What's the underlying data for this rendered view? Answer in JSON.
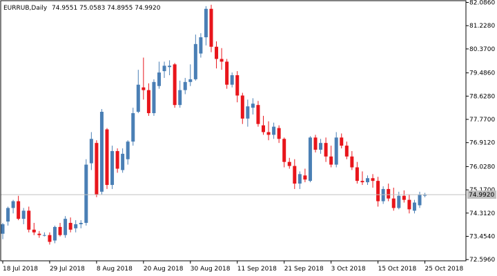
{
  "header": {
    "symbol": "EURRUB,Daily",
    "ohlc": "74.9551 75.0583 74.8955 74.9920"
  },
  "colors": {
    "background": "#ffffff",
    "frame": "#000000",
    "up": "#4a7fb5",
    "down": "#e8151b",
    "price_line": "#c0c0c0",
    "price_box": "#c0c0c0",
    "text": "#000000"
  },
  "chart_data": {
    "type": "candlestick",
    "title": "EURRUB,Daily",
    "current_price": 74.992,
    "current_price_label": "74.9920",
    "ylim": [
      72.55,
      82.15
    ],
    "y_ticks": [
      82.086,
      81.228,
      80.37,
      79.486,
      78.628,
      77.77,
      76.912,
      76.028,
      75.17,
      74.312,
      73.454,
      72.596
    ],
    "y_tick_labels": [
      "82.0860",
      "81.2280",
      "80.3700",
      "79.4860",
      "78.6280",
      "77.7700",
      "76.9120",
      "76.0280",
      "75.1700",
      "74.3120",
      "73.4540",
      "72.5960"
    ],
    "x_tick_labels": [
      {
        "index": 0,
        "label": "18 Jul 2018"
      },
      {
        "index": 9,
        "label": "29 Jul 2018"
      },
      {
        "index": 18,
        "label": "8 Aug 2018"
      },
      {
        "index": 27,
        "label": "20 Aug 2018"
      },
      {
        "index": 36,
        "label": "30 Aug 2018"
      },
      {
        "index": 45,
        "label": "11 Sep 2018"
      },
      {
        "index": 54,
        "label": "21 Sep 2018"
      },
      {
        "index": 63,
        "label": "3 Oct 2018"
      },
      {
        "index": 72,
        "label": "15 Oct 2018"
      },
      {
        "index": 81,
        "label": "25 Oct 2018"
      }
    ],
    "candles": [
      [
        73.55,
        73.95,
        73.35,
        73.9
      ],
      [
        74.0,
        74.55,
        73.85,
        74.5
      ],
      [
        74.5,
        74.8,
        74.3,
        74.75
      ],
      [
        74.75,
        74.95,
        74.05,
        74.1
      ],
      [
        74.1,
        74.5,
        73.9,
        74.4
      ],
      [
        74.4,
        74.55,
        73.6,
        73.7
      ],
      [
        73.7,
        73.95,
        73.5,
        73.6
      ],
      [
        73.55,
        73.65,
        73.4,
        73.5
      ],
      [
        73.5,
        73.6,
        73.45,
        73.5
      ],
      [
        73.5,
        73.6,
        73.15,
        73.25
      ],
      [
        73.3,
        73.85,
        73.2,
        73.8
      ],
      [
        73.8,
        73.95,
        73.45,
        73.5
      ],
      [
        73.5,
        74.2,
        73.4,
        74.1
      ],
      [
        73.95,
        74.15,
        73.6,
        73.7
      ],
      [
        73.75,
        74.05,
        73.6,
        73.9
      ],
      [
        73.9,
        74.05,
        73.75,
        73.95
      ],
      [
        73.95,
        76.3,
        73.85,
        76.1
      ],
      [
        76.15,
        77.3,
        75.9,
        77.05
      ],
      [
        76.9,
        77.0,
        74.9,
        75.0
      ],
      [
        75.1,
        78.15,
        75.0,
        78.05
      ],
      [
        77.4,
        77.45,
        75.2,
        75.35
      ],
      [
        75.35,
        76.8,
        75.2,
        76.6
      ],
      [
        76.6,
        76.7,
        75.8,
        75.95
      ],
      [
        75.9,
        76.7,
        75.8,
        76.5
      ],
      [
        76.3,
        77.0,
        76.1,
        76.95
      ],
      [
        76.95,
        78.2,
        76.8,
        78.0
      ],
      [
        78.05,
        79.6,
        78.0,
        79.05
      ],
      [
        78.95,
        80.05,
        78.5,
        78.85
      ],
      [
        78.85,
        79.1,
        77.9,
        78.0
      ],
      [
        78.0,
        79.25,
        77.9,
        79.15
      ],
      [
        79.0,
        79.9,
        78.9,
        79.5
      ],
      [
        79.55,
        79.9,
        79.3,
        79.75
      ],
      [
        79.7,
        79.95,
        79.4,
        79.75
      ],
      [
        79.8,
        79.85,
        78.2,
        78.3
      ],
      [
        78.3,
        79.2,
        78.2,
        78.85
      ],
      [
        78.85,
        79.3,
        78.7,
        79.15
      ],
      [
        79.15,
        79.8,
        79.0,
        79.25
      ],
      [
        79.25,
        80.9,
        79.2,
        80.55
      ],
      [
        80.2,
        80.95,
        80.05,
        80.8
      ],
      [
        80.8,
        81.95,
        80.5,
        81.85
      ],
      [
        81.85,
        82.0,
        80.25,
        80.45
      ],
      [
        80.45,
        80.65,
        79.65,
        80.0
      ],
      [
        80.0,
        80.4,
        79.6,
        79.9
      ],
      [
        79.9,
        80.0,
        78.9,
        79.05
      ],
      [
        79.05,
        79.5,
        78.95,
        79.4
      ],
      [
        79.4,
        79.55,
        78.4,
        78.65
      ],
      [
        78.65,
        78.75,
        77.6,
        77.8
      ],
      [
        77.8,
        78.5,
        77.5,
        78.25
      ],
      [
        78.2,
        78.55,
        77.95,
        78.35
      ],
      [
        78.3,
        78.45,
        77.5,
        77.6
      ],
      [
        77.55,
        77.9,
        77.2,
        77.3
      ],
      [
        77.3,
        77.7,
        77.0,
        77.2
      ],
      [
        77.2,
        77.65,
        77.05,
        77.5
      ],
      [
        77.45,
        77.55,
        76.9,
        77.05
      ],
      [
        77.05,
        77.1,
        76.0,
        76.2
      ],
      [
        76.2,
        76.35,
        75.95,
        76.05
      ],
      [
        76.05,
        76.3,
        75.2,
        75.4
      ],
      [
        75.4,
        75.85,
        75.2,
        75.75
      ],
      [
        75.7,
        75.95,
        75.45,
        75.55
      ],
      [
        75.5,
        77.15,
        75.45,
        77.1
      ],
      [
        77.1,
        77.2,
        76.55,
        76.65
      ],
      [
        76.65,
        77.05,
        76.5,
        76.9
      ],
      [
        76.9,
        77.1,
        76.2,
        76.4
      ],
      [
        76.4,
        76.8,
        76.0,
        76.1
      ],
      [
        76.1,
        77.3,
        76.0,
        77.1
      ],
      [
        77.1,
        77.25,
        76.7,
        76.8
      ],
      [
        76.8,
        76.95,
        76.3,
        76.4
      ],
      [
        76.4,
        76.6,
        75.9,
        76.0
      ],
      [
        76.0,
        76.2,
        75.4,
        75.5
      ],
      [
        75.5,
        75.85,
        75.35,
        75.45
      ],
      [
        75.45,
        75.7,
        75.35,
        75.6
      ],
      [
        75.6,
        75.75,
        75.25,
        75.5
      ],
      [
        75.5,
        75.65,
        74.55,
        74.75
      ],
      [
        74.75,
        75.3,
        74.65,
        75.2
      ],
      [
        75.2,
        75.4,
        74.75,
        74.85
      ],
      [
        74.85,
        75.25,
        74.4,
        74.5
      ],
      [
        74.5,
        75.1,
        74.45,
        74.95
      ],
      [
        74.95,
        75.15,
        74.7,
        74.8
      ],
      [
        74.8,
        75.0,
        74.3,
        74.45
      ],
      [
        74.4,
        74.8,
        74.3,
        74.7
      ],
      [
        74.6,
        75.1,
        74.5,
        75.0
      ],
      [
        74.9551,
        75.0583,
        74.8955,
        74.992
      ]
    ]
  }
}
